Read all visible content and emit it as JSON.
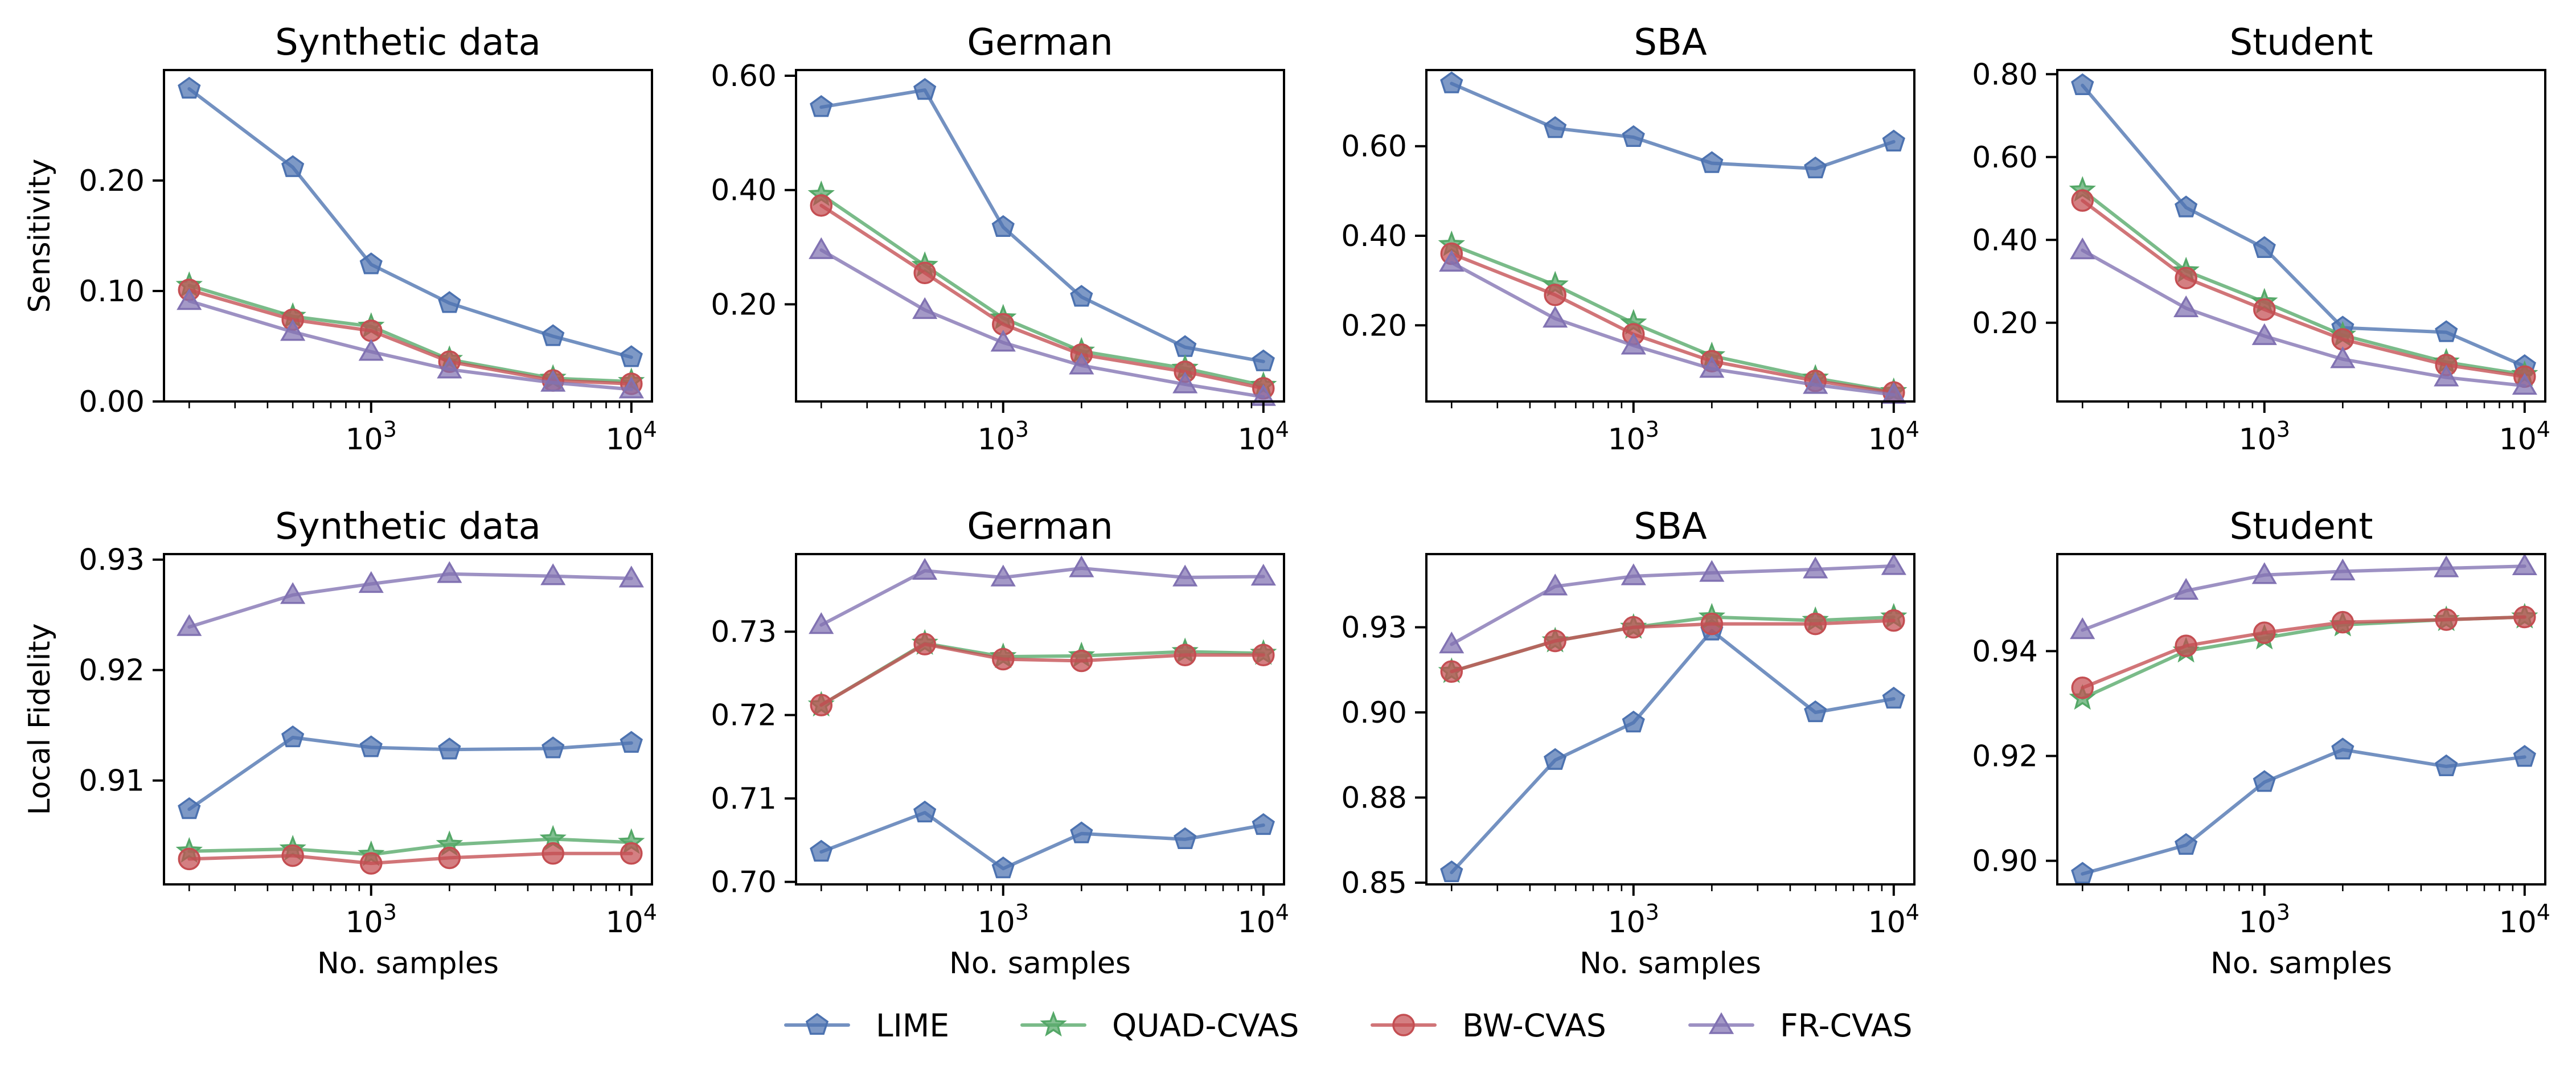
{
  "legend": {
    "entries": [
      {
        "name": "LIME",
        "color": "#4c72b0",
        "marker": "pentagon"
      },
      {
        "name": "QUAD-CVAS",
        "color": "#55a868",
        "marker": "star"
      },
      {
        "name": "BW-CVAS",
        "color": "#c44e52",
        "marker": "circle"
      },
      {
        "name": "FR-CVAS",
        "color": "#8172b2",
        "marker": "triangle"
      }
    ],
    "placement": "bottom-center"
  },
  "chart_data": [
    {
      "type": "line",
      "title": "Synthetic data",
      "xlabel": "",
      "ylabel": "Sensitivity",
      "xscale": "log",
      "xlim": [
        160,
        12000
      ],
      "ylim": [
        0.0,
        0.3
      ],
      "xticks": [
        1000,
        10000
      ],
      "xtick_labels": [
        "10³",
        "10⁴"
      ],
      "yticks": [
        0.0,
        0.1,
        0.2
      ],
      "ytick_labels": [
        "0.00",
        "0.10",
        "0.20"
      ],
      "x": [
        200,
        500,
        1000,
        2000,
        5000,
        10000
      ],
      "series": [
        {
          "name": "LIME",
          "values": [
            0.283,
            0.212,
            0.124,
            0.089,
            0.059,
            0.04
          ]
        },
        {
          "name": "QUAD-CVAS",
          "values": [
            0.105,
            0.077,
            0.068,
            0.038,
            0.021,
            0.018
          ]
        },
        {
          "name": "BW-CVAS",
          "values": [
            0.101,
            0.074,
            0.064,
            0.036,
            0.019,
            0.016
          ]
        },
        {
          "name": "FR-CVAS",
          "values": [
            0.091,
            0.063,
            0.045,
            0.029,
            0.017,
            0.011
          ]
        }
      ]
    },
    {
      "type": "line",
      "title": "German",
      "xlabel": "",
      "ylabel": "",
      "xscale": "log",
      "xlim": [
        160,
        12000
      ],
      "ylim": [
        0.03,
        0.61
      ],
      "xticks": [
        1000,
        10000
      ],
      "xtick_labels": [
        "10³",
        "10⁴"
      ],
      "yticks": [
        0.2,
        0.4,
        0.6
      ],
      "ytick_labels": [
        "0.20",
        "0.40",
        "0.60"
      ],
      "x": [
        200,
        500,
        1000,
        2000,
        5000,
        10000
      ],
      "series": [
        {
          "name": "LIME",
          "values": [
            0.545,
            0.575,
            0.335,
            0.213,
            0.125,
            0.1
          ]
        },
        {
          "name": "QUAD-CVAS",
          "values": [
            0.392,
            0.268,
            0.176,
            0.118,
            0.088,
            0.058
          ]
        },
        {
          "name": "BW-CVAS",
          "values": [
            0.373,
            0.255,
            0.165,
            0.112,
            0.082,
            0.053
          ]
        },
        {
          "name": "FR-CVAS",
          "values": [
            0.295,
            0.19,
            0.133,
            0.093,
            0.06,
            0.038
          ]
        }
      ]
    },
    {
      "type": "line",
      "title": "SBA",
      "xlabel": "",
      "ylabel": "",
      "xscale": "log",
      "xlim": [
        160,
        12000
      ],
      "ylim": [
        0.03,
        0.77
      ],
      "xticks": [
        1000,
        10000
      ],
      "xtick_labels": [
        "10³",
        "10⁴"
      ],
      "yticks": [
        0.2,
        0.4,
        0.6
      ],
      "ytick_labels": [
        "0.20",
        "0.40",
        "0.60"
      ],
      "x": [
        200,
        500,
        1000,
        2000,
        5000,
        10000
      ],
      "series": [
        {
          "name": "LIME",
          "values": [
            0.74,
            0.64,
            0.62,
            0.562,
            0.55,
            0.61
          ]
        },
        {
          "name": "QUAD-CVAS",
          "values": [
            0.38,
            0.29,
            0.205,
            0.132,
            0.082,
            0.052
          ]
        },
        {
          "name": "BW-CVAS",
          "values": [
            0.36,
            0.268,
            0.18,
            0.12,
            0.076,
            0.05
          ]
        },
        {
          "name": "FR-CVAS",
          "values": [
            0.34,
            0.215,
            0.155,
            0.103,
            0.067,
            0.045
          ]
        }
      ]
    },
    {
      "type": "line",
      "title": "Student",
      "xlabel": "",
      "ylabel": "",
      "xscale": "log",
      "xlim": [
        160,
        12000
      ],
      "ylim": [
        0.01,
        0.81
      ],
      "xticks": [
        1000,
        10000
      ],
      "xtick_labels": [
        "10³",
        "10⁴"
      ],
      "yticks": [
        0.2,
        0.4,
        0.6,
        0.8
      ],
      "ytick_labels": [
        "0.20",
        "0.40",
        "0.60",
        "0.80"
      ],
      "x": [
        200,
        500,
        1000,
        2000,
        5000,
        10000
      ],
      "series": [
        {
          "name": "LIME",
          "values": [
            0.773,
            0.478,
            0.38,
            0.188,
            0.177,
            0.095
          ]
        },
        {
          "name": "QUAD-CVAS",
          "values": [
            0.52,
            0.325,
            0.25,
            0.17,
            0.105,
            0.075
          ]
        },
        {
          "name": "BW-CVAS",
          "values": [
            0.495,
            0.308,
            0.232,
            0.16,
            0.098,
            0.07
          ]
        },
        {
          "name": "FR-CVAS",
          "values": [
            0.375,
            0.235,
            0.168,
            0.112,
            0.068,
            0.048
          ]
        }
      ]
    },
    {
      "type": "line",
      "title": "Synthetic data",
      "xlabel": "No. samples",
      "ylabel": "Local Fidelity",
      "xscale": "log",
      "xlim": [
        160,
        12000
      ],
      "ylim": [
        0.9006,
        0.9305
      ],
      "xticks": [
        1000,
        10000
      ],
      "xtick_labels": [
        "10³",
        "10⁴"
      ],
      "yticks": [
        0.91,
        0.92,
        0.93
      ],
      "ytick_labels": [
        "0.91",
        "0.92",
        "0.93"
      ],
      "x": [
        200,
        500,
        1000,
        2000,
        5000,
        10000
      ],
      "series": [
        {
          "name": "LIME",
          "values": [
            0.9074,
            0.9139,
            0.913,
            0.9128,
            0.9129,
            0.9134
          ]
        },
        {
          "name": "QUAD-CVAS",
          "values": [
            0.9036,
            0.9038,
            0.9033,
            0.9042,
            0.9047,
            0.9044
          ]
        },
        {
          "name": "BW-CVAS",
          "values": [
            0.9029,
            0.9032,
            0.9025,
            0.903,
            0.9034,
            0.9034
          ]
        },
        {
          "name": "FR-CVAS",
          "values": [
            0.9239,
            0.9268,
            0.9278,
            0.9287,
            0.9285,
            0.9283
          ]
        }
      ]
    },
    {
      "type": "line",
      "title": "German",
      "xlabel": "No. samples",
      "ylabel": "",
      "xscale": "log",
      "xlim": [
        160,
        12000
      ],
      "ylim": [
        0.6997,
        0.7393
      ],
      "xticks": [
        1000,
        10000
      ],
      "xtick_labels": [
        "10³",
        "10⁴"
      ],
      "yticks": [
        0.7,
        0.71,
        0.72,
        0.73
      ],
      "ytick_labels": [
        "0.70",
        "0.71",
        "0.72",
        "0.73"
      ],
      "x": [
        200,
        500,
        1000,
        2000,
        5000,
        10000
      ],
      "series": [
        {
          "name": "LIME",
          "values": [
            0.7036,
            0.7083,
            0.7016,
            0.7058,
            0.7051,
            0.7068
          ]
        },
        {
          "name": "QUAD-CVAS",
          "values": [
            0.7212,
            0.7286,
            0.727,
            0.7271,
            0.7276,
            0.7274
          ]
        },
        {
          "name": "BW-CVAS",
          "values": [
            0.7212,
            0.7285,
            0.7267,
            0.7265,
            0.7272,
            0.7272
          ]
        },
        {
          "name": "FR-CVAS",
          "values": [
            0.7308,
            0.7373,
            0.7365,
            0.7376,
            0.7365,
            0.7366
          ]
        }
      ]
    },
    {
      "type": "line",
      "title": "SBA",
      "xlabel": "No. samples",
      "ylabel": "",
      "xscale": "log",
      "xlim": [
        160,
        12000
      ],
      "ylim": [
        0.8495,
        0.9465
      ],
      "xticks": [
        1000,
        10000
      ],
      "xtick_labels": [
        "10³",
        "10⁴"
      ],
      "yticks": [
        0.85,
        0.875,
        0.9,
        0.925
      ],
      "ytick_labels": [
        "0.85",
        "0.88",
        "0.90",
        "0.93"
      ],
      "x": [
        200,
        500,
        1000,
        2000,
        5000,
        10000
      ],
      "series": [
        {
          "name": "LIME",
          "values": [
            0.853,
            0.886,
            0.897,
            0.924,
            0.9,
            0.904
          ]
        },
        {
          "name": "QUAD-CVAS",
          "values": [
            0.912,
            0.921,
            0.925,
            0.928,
            0.927,
            0.928
          ]
        },
        {
          "name": "BW-CVAS",
          "values": [
            0.912,
            0.921,
            0.925,
            0.926,
            0.926,
            0.927
          ]
        },
        {
          "name": "FR-CVAS",
          "values": [
            0.92,
            0.937,
            0.94,
            0.941,
            0.942,
            0.943
          ]
        }
      ]
    },
    {
      "type": "line",
      "title": "Student",
      "xlabel": "No. samples",
      "ylabel": "",
      "xscale": "log",
      "xlim": [
        160,
        12000
      ],
      "ylim": [
        0.8955,
        0.9585
      ],
      "xticks": [
        1000,
        10000
      ],
      "xtick_labels": [
        "10³",
        "10⁴"
      ],
      "yticks": [
        0.9,
        0.92,
        0.94
      ],
      "ytick_labels": [
        "0.90",
        "0.92",
        "0.94"
      ],
      "x": [
        200,
        500,
        1000,
        2000,
        5000,
        10000
      ],
      "series": [
        {
          "name": "LIME",
          "values": [
            0.8975,
            0.903,
            0.915,
            0.9212,
            0.918,
            0.9198
          ]
        },
        {
          "name": "QUAD-CVAS",
          "values": [
            0.931,
            0.94,
            0.9425,
            0.945,
            0.946,
            0.9465
          ]
        },
        {
          "name": "BW-CVAS",
          "values": [
            0.933,
            0.941,
            0.9435,
            0.9455,
            0.946,
            0.9465
          ]
        },
        {
          "name": "FR-CVAS",
          "values": [
            0.944,
            0.9515,
            0.9545,
            0.9552,
            0.9558,
            0.9562
          ]
        }
      ]
    }
  ]
}
